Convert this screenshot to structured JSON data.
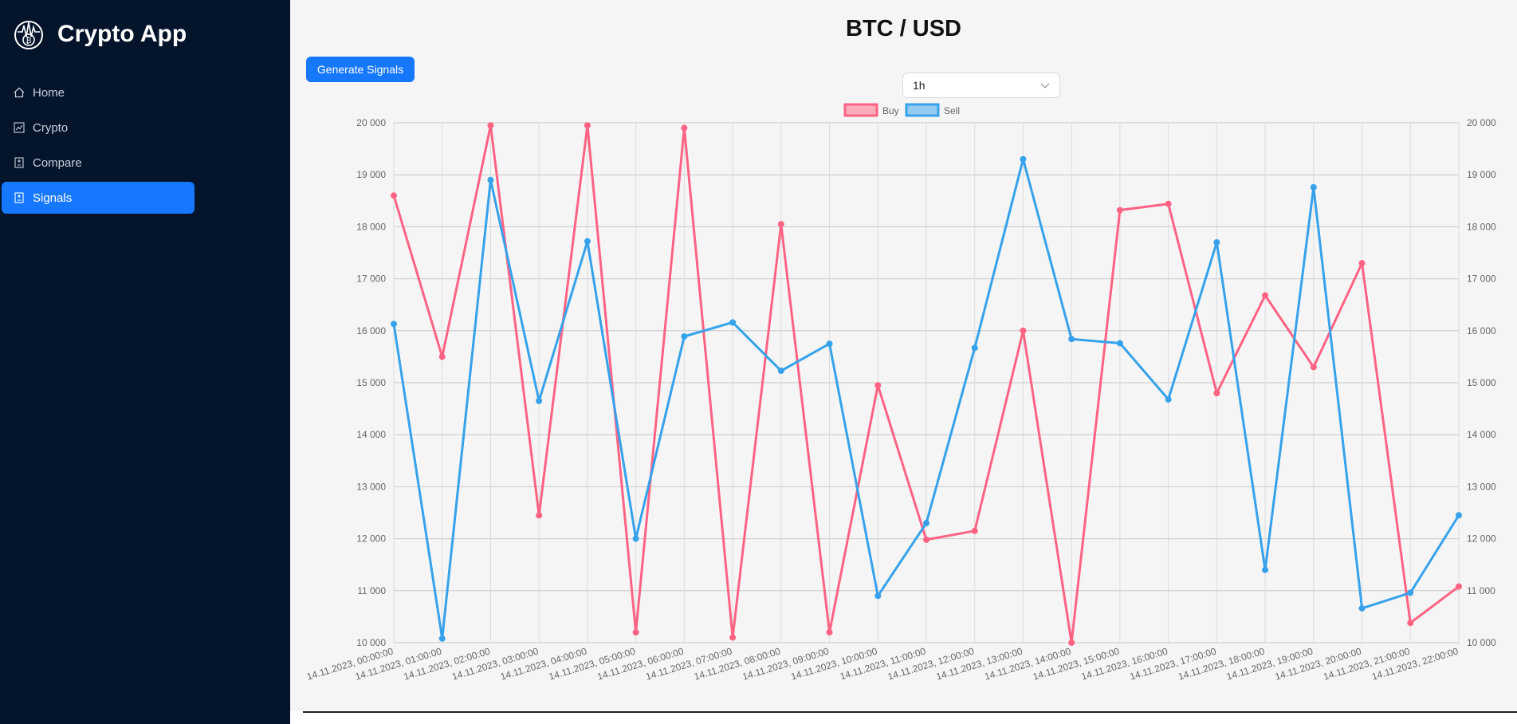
{
  "app": {
    "title": "Crypto App"
  },
  "sidebar": {
    "items": [
      {
        "label": "Home",
        "icon": "home-icon",
        "active": false
      },
      {
        "label": "Crypto",
        "icon": "line-chart-icon",
        "active": false
      },
      {
        "label": "Compare",
        "icon": "compare-icon",
        "active": false
      },
      {
        "label": "Signals",
        "icon": "signals-icon",
        "active": true
      }
    ]
  },
  "main": {
    "title": "BTC / USD",
    "generate_button": "Generate Signals",
    "interval": {
      "selected": "1h"
    }
  },
  "colors": {
    "sidebar_bg": "#04142b",
    "accent": "#1677ff",
    "buy": "#ff6384",
    "sell": "#36a2eb"
  },
  "chart_data": {
    "type": "line",
    "legend": [
      "Buy",
      "Sell"
    ],
    "legend_position": "top-center",
    "grid": true,
    "ylim": [
      10000,
      20000
    ],
    "y_ticks": [
      "10 000",
      "11 000",
      "12 000",
      "13 000",
      "14 000",
      "15 000",
      "16 000",
      "17 000",
      "18 000",
      "19 000",
      "20 000"
    ],
    "x": [
      "14.11.2023, 00:00:00",
      "14.11.2023, 01:00:00",
      "14.11.2023, 02:00:00",
      "14.11.2023, 03:00:00",
      "14.11.2023, 04:00:00",
      "14.11.2023, 05:00:00",
      "14.11.2023, 06:00:00",
      "14.11.2023, 07:00:00",
      "14.11.2023, 08:00:00",
      "14.11.2023, 09:00:00",
      "14.11.2023, 10:00:00",
      "14.11.2023, 11:00:00",
      "14.11.2023, 12:00:00",
      "14.11.2023, 13:00:00",
      "14.11.2023, 14:00:00",
      "14.11.2023, 15:00:00",
      "14.11.2023, 16:00:00",
      "14.11.2023, 17:00:00",
      "14.11.2023, 18:00:00",
      "14.11.2023, 19:00:00",
      "14.11.2023, 20:00:00",
      "14.11.2023, 21:00:00",
      "14.11.2023, 22:00:00"
    ],
    "series": [
      {
        "name": "Buy",
        "color": "#ff6384",
        "values": [
          18600,
          15500,
          19950,
          12450,
          19950,
          10200,
          19900,
          10100,
          18050,
          10200,
          14950,
          11980,
          12150,
          16000,
          10000,
          18320,
          18440,
          14800,
          16680,
          15300,
          17300,
          10380,
          11080
        ]
      },
      {
        "name": "Sell",
        "color": "#36a2eb",
        "values": [
          16130,
          10080,
          18900,
          14650,
          17720,
          12000,
          15890,
          16160,
          15230,
          15750,
          10900,
          12300,
          15670,
          19300,
          15840,
          15760,
          14680,
          17700,
          11400,
          18760,
          10660,
          10960,
          12450
        ]
      }
    ]
  }
}
